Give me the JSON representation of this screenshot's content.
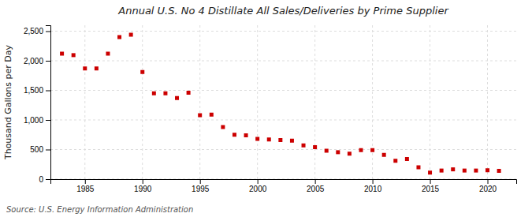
{
  "chart_data": {
    "type": "scatter",
    "title": "Annual U.S. No 4 Distillate All Sales/Deliveries by Prime Supplier",
    "y_label": "Thousand Gallons per Day",
    "annotations": [
      "Source: U.S. Energy Information Administration"
    ],
    "x": [
      1983,
      1984,
      1985,
      1986,
      1987,
      1988,
      1989,
      1990,
      1991,
      1992,
      1993,
      1994,
      1995,
      1996,
      1997,
      1998,
      1999,
      2000,
      2001,
      2002,
      2003,
      2004,
      2005,
      2006,
      2007,
      2008,
      2009,
      2010,
      2011,
      2012,
      2013,
      2014,
      2015,
      2016,
      2017,
      2018,
      2019,
      2020,
      2021
    ],
    "values": [
      2120,
      2095,
      1870,
      1870,
      2120,
      2400,
      2440,
      1810,
      1450,
      1450,
      1370,
      1460,
      1080,
      1090,
      880,
      750,
      740,
      680,
      670,
      660,
      650,
      570,
      540,
      480,
      455,
      430,
      490,
      490,
      410,
      310,
      340,
      200,
      110,
      145,
      165,
      145,
      145,
      150,
      140
    ],
    "color": "#cc0000",
    "marker": "square",
    "xlim": [
      1982,
      2022.5
    ],
    "xticks": [
      1985,
      1990,
      1995,
      2000,
      2005,
      2010,
      2015,
      2020
    ],
    "ylim": [
      0,
      2600
    ],
    "yticks": [
      0,
      500,
      {
        "value": 1000,
        "label": "1,000"
      },
      {
        "value": 1500,
        "label": "1,500"
      },
      {
        "value": 2000,
        "label": "2,000"
      },
      {
        "value": 2500,
        "label": "2,500"
      }
    ],
    "grid": true
  }
}
